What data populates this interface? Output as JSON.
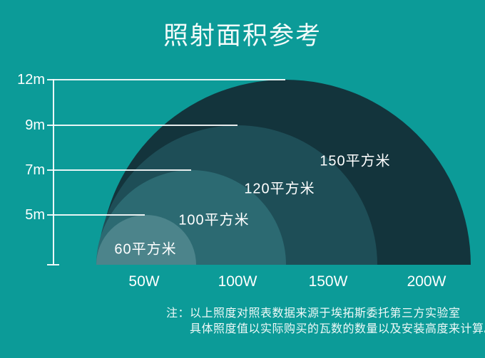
{
  "title": "照射面积参考",
  "chart_data": {
    "type": "area",
    "title": "照射面积参考",
    "description": "concentric semicircles: coverage area vs lamp wattage and mounting height",
    "y_ticks": [
      "12m",
      "9m",
      "7m",
      "5m"
    ],
    "x_ticks": [
      "50W",
      "100W",
      "150W",
      "200W"
    ],
    "y_axis_unit": "m",
    "x_axis_unit": "W",
    "rings": [
      {
        "label": "60平方米",
        "area_sqm": 60,
        "watts": 50,
        "height_m": 5,
        "color": "#4C848B"
      },
      {
        "label": "100平方米",
        "area_sqm": 100,
        "watts": 100,
        "height_m": 7,
        "color": "#2C6A72"
      },
      {
        "label": "120平方米",
        "area_sqm": 120,
        "watts": 150,
        "height_m": 9,
        "color": "#1E4E57"
      },
      {
        "label": "150平方米",
        "area_sqm": 150,
        "watts": 200,
        "height_m": 12,
        "color": "#13343C"
      }
    ],
    "legend_position": "none",
    "grid": "partial horizontal lines with left axis"
  },
  "note": {
    "prefix": "注：",
    "line1": "以上照度对照表数据来源于埃拓斯委托第三方实验室",
    "line2": "具体照度值以实际购买的瓦数的数量以及安装高度来计算。"
  },
  "colors": {
    "background": "#0C9B98",
    "axis": "#FFFFFF",
    "text": "#FFFFFF",
    "ring_60": "#4C848B",
    "ring_100": "#2C6A72",
    "ring_120": "#1E4E57",
    "ring_150": "#13343C"
  }
}
